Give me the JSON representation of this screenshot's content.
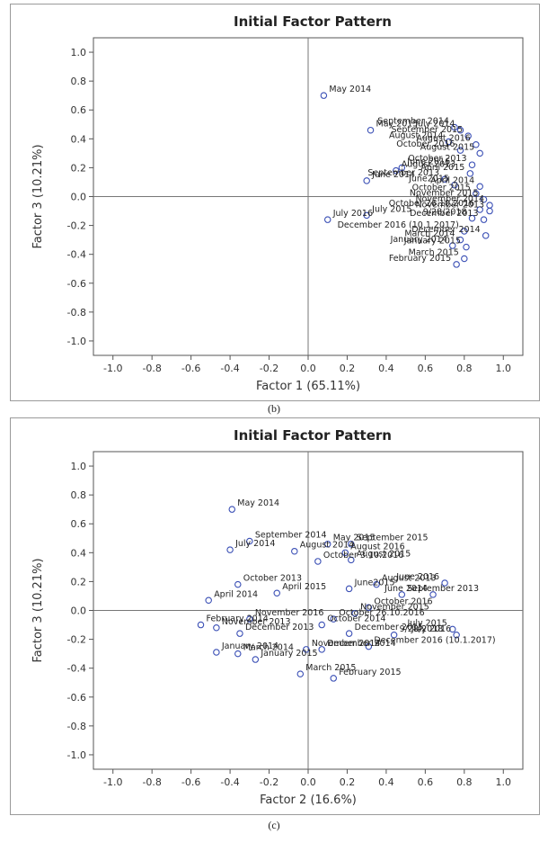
{
  "chart_data": [
    {
      "type": "scatter",
      "caption": "(b)",
      "title": "Initial Factor Pattern",
      "xlabel": "Factor 1 (65.11%)",
      "ylabel": "Factor 3 (10.21%)",
      "xlim": [
        -1.0,
        1.0
      ],
      "ylim": [
        -1.0,
        1.0
      ],
      "xticks": [
        "-1.0",
        "-0.8",
        "-0.6",
        "-0.4",
        "-0.2",
        "0.0",
        "0.2",
        "0.4",
        "0.6",
        "0.8",
        "1.0"
      ],
      "yticks": [
        "1.0",
        "0.8",
        "0.6",
        "0.4",
        "0.2",
        "0.0",
        "-0.2",
        "-0.4",
        "-0.6",
        "-0.8",
        "-1.0"
      ],
      "points": [
        {
          "label": "May 2014",
          "x": 0.08,
          "y": 0.7
        },
        {
          "label": "September 2014",
          "x": 0.75,
          "y": 0.48
        },
        {
          "label": "May 2015",
          "x": 0.32,
          "y": 0.46
        },
        {
          "label": "July 2014",
          "x": 0.78,
          "y": 0.46
        },
        {
          "label": "September 2015",
          "x": 0.82,
          "y": 0.42
        },
        {
          "label": "August 2014",
          "x": 0.72,
          "y": 0.38
        },
        {
          "label": "August 2016",
          "x": 0.86,
          "y": 0.36
        },
        {
          "label": "October 2016",
          "x": 0.78,
          "y": 0.32
        },
        {
          "label": "August 2015",
          "x": 0.88,
          "y": 0.3
        },
        {
          "label": "June 2016",
          "x": 0.48,
          "y": 0.2
        },
        {
          "label": "October 2013",
          "x": 0.84,
          "y": 0.22
        },
        {
          "label": "August 2013",
          "x": 0.45,
          "y": 0.18
        },
        {
          "label": "April 2015",
          "x": 0.83,
          "y": 0.16
        },
        {
          "label": "September 2013",
          "x": 0.7,
          "y": 0.12
        },
        {
          "label": "June 2014",
          "x": 0.3,
          "y": 0.11
        },
        {
          "label": "June2015",
          "x": 0.75,
          "y": 0.08
        },
        {
          "label": "April 2014",
          "x": 0.88,
          "y": 0.07
        },
        {
          "label": "October 2015",
          "x": 0.86,
          "y": 0.02
        },
        {
          "label": "November 2015",
          "x": 0.9,
          "y": -0.02
        },
        {
          "label": "November 2014",
          "x": 0.93,
          "y": -0.06
        },
        {
          "label": "October 26.10.2016",
          "x": 0.88,
          "y": -0.09
        },
        {
          "label": "November 2013",
          "x": 0.93,
          "y": -0.1
        },
        {
          "label": "July 2015",
          "x": 0.3,
          "y": -0.13
        },
        {
          "label": "9/28/2018",
          "x": 0.84,
          "y": -0.15
        },
        {
          "label": "July 2016",
          "x": 0.1,
          "y": -0.16
        },
        {
          "label": "December 2013",
          "x": 0.9,
          "y": -0.16
        },
        {
          "label": "December 2016 (10.1.2017)",
          "x": 0.8,
          "y": -0.24
        },
        {
          "label": "December 2014",
          "x": 0.91,
          "y": -0.27
        },
        {
          "label": "March 2014",
          "x": 0.78,
          "y": -0.3
        },
        {
          "label": "January 2014",
          "x": 0.74,
          "y": -0.34
        },
        {
          "label": "January 2015",
          "x": 0.81,
          "y": -0.35
        },
        {
          "label": "March 2015",
          "x": 0.8,
          "y": -0.43
        },
        {
          "label": "February 2015",
          "x": 0.76,
          "y": -0.47
        }
      ]
    },
    {
      "type": "scatter",
      "caption": "(c)",
      "title": "Initial Factor Pattern",
      "xlabel": "Factor 2 (16.6%)",
      "ylabel": "Factor 3 (10.21%)",
      "xlim": [
        -1.0,
        1.0
      ],
      "ylim": [
        -1.0,
        1.0
      ],
      "xticks": [
        "-1.0",
        "-0.8",
        "-0.6",
        "-0.4",
        "-0.2",
        "0.0",
        "0.2",
        "0.4",
        "0.6",
        "0.8",
        "1.0"
      ],
      "yticks": [
        "1.0",
        "0.8",
        "0.6",
        "0.4",
        "0.2",
        "0.0",
        "-0.2",
        "-0.4",
        "-0.6",
        "-0.8",
        "-1.0"
      ],
      "points": [
        {
          "label": "May 2014",
          "x": -0.39,
          "y": 0.7
        },
        {
          "label": "September 2014",
          "x": -0.3,
          "y": 0.48
        },
        {
          "label": "September 2015",
          "x": 0.22,
          "y": 0.46
        },
        {
          "label": "July 2014",
          "x": -0.4,
          "y": 0.42
        },
        {
          "label": "May 2015",
          "x": 0.1,
          "y": 0.46
        },
        {
          "label": "August 2014",
          "x": -0.07,
          "y": 0.41
        },
        {
          "label": "August 2016",
          "x": 0.19,
          "y": 0.4
        },
        {
          "label": "August 2015",
          "x": 0.22,
          "y": 0.35
        },
        {
          "label": "October 3.10.2016",
          "x": 0.05,
          "y": 0.34
        },
        {
          "label": "October 2013",
          "x": -0.36,
          "y": 0.18
        },
        {
          "label": "August 2013",
          "x": 0.35,
          "y": 0.18
        },
        {
          "label": "June 2016",
          "x": 0.7,
          "y": 0.19
        },
        {
          "label": "June2015",
          "x": 0.21,
          "y": 0.15
        },
        {
          "label": "April 2014",
          "x": -0.51,
          "y": 0.07
        },
        {
          "label": "April 2015",
          "x": -0.16,
          "y": 0.12
        },
        {
          "label": "September 2013",
          "x": 0.48,
          "y": 0.11
        },
        {
          "label": "June 2014",
          "x": 0.64,
          "y": 0.11
        },
        {
          "label": "October 2016",
          "x": 0.31,
          "y": 0.02
        },
        {
          "label": "November 2015",
          "x": 0.24,
          "y": -0.02
        },
        {
          "label": "November 2016",
          "x": -0.3,
          "y": -0.06
        },
        {
          "label": "October 26.10.2016",
          "x": 0.13,
          "y": -0.06
        },
        {
          "label": "February 2014",
          "x": -0.55,
          "y": -0.1
        },
        {
          "label": "July 2015",
          "x": 0.74,
          "y": -0.13
        },
        {
          "label": "November 2013",
          "x": -0.47,
          "y": -0.12
        },
        {
          "label": "October 2014",
          "x": 0.07,
          "y": -0.1
        },
        {
          "label": "December 2013",
          "x": -0.35,
          "y": -0.16
        },
        {
          "label": "July 2016",
          "x": 0.76,
          "y": -0.17
        },
        {
          "label": "9/28/2018",
          "x": 0.44,
          "y": -0.17
        },
        {
          "label": "December 2015",
          "x": 0.21,
          "y": -0.16
        },
        {
          "label": "December 2016 (10.1.2017)",
          "x": 0.31,
          "y": -0.25
        },
        {
          "label": "January 2014",
          "x": -0.47,
          "y": -0.29
        },
        {
          "label": "November 2014",
          "x": -0.01,
          "y": -0.27
        },
        {
          "label": "March 2014",
          "x": -0.36,
          "y": -0.3
        },
        {
          "label": "December 2014",
          "x": 0.07,
          "y": -0.27
        },
        {
          "label": "January 2015",
          "x": -0.27,
          "y": -0.34
        },
        {
          "label": "March 2015",
          "x": -0.04,
          "y": -0.44
        },
        {
          "label": "February 2015",
          "x": 0.13,
          "y": -0.47
        }
      ]
    }
  ]
}
